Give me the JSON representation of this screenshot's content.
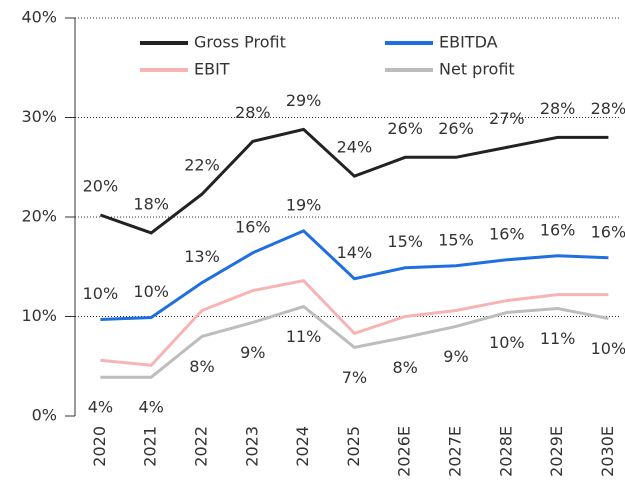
{
  "chart_data": {
    "type": "line",
    "categories": [
      "2020",
      "2021",
      "2022",
      "2023",
      "2024",
      "2025",
      "2026E",
      "2027E",
      "2028E",
      "2029E",
      "2030E"
    ],
    "series": [
      {
        "name": "Gross Profit",
        "color": "#222222",
        "values": [
          20.2,
          18.4,
          22.3,
          27.6,
          28.8,
          24.1,
          26.0,
          26.0,
          27.0,
          28.0,
          28.0
        ],
        "value_labels": [
          "20%",
          "18%",
          "22%",
          "28%",
          "29%",
          "24%",
          "26%",
          "26%",
          "27%",
          "28%",
          "28%"
        ]
      },
      {
        "name": "EBITDA",
        "color": "#1f6fe0",
        "values": [
          9.7,
          9.9,
          13.4,
          16.4,
          18.6,
          13.8,
          14.9,
          15.1,
          15.7,
          16.1,
          15.9
        ],
        "value_labels": [
          "10%",
          "10%",
          "13%",
          "16%",
          "19%",
          "14%",
          "15%",
          "15%",
          "16%",
          "16%",
          "16%"
        ]
      },
      {
        "name": "EBIT",
        "color": "#f7b4b4",
        "values": [
          5.6,
          5.1,
          10.6,
          12.6,
          13.6,
          8.3,
          10.0,
          10.6,
          11.6,
          12.2,
          12.2
        ]
      },
      {
        "name": "Net profit",
        "color": "#bdbdbd",
        "values": [
          3.9,
          3.9,
          8.0,
          9.4,
          11.0,
          6.9,
          7.9,
          9.0,
          10.4,
          10.8,
          9.8
        ],
        "value_labels": [
          "4%",
          "4%",
          "8%",
          "9%",
          "11%",
          "7%",
          "8%",
          "9%",
          "10%",
          "11%",
          "10%"
        ]
      }
    ],
    "ylim": [
      0,
      40
    ],
    "yticks": [
      {
        "value": 0,
        "label": "0%"
      },
      {
        "value": 10,
        "label": "10%"
      },
      {
        "value": 20,
        "label": "20%"
      },
      {
        "value": 30,
        "label": "30%"
      },
      {
        "value": 40,
        "label": "40%"
      }
    ],
    "grid": true,
    "legend": "top"
  }
}
